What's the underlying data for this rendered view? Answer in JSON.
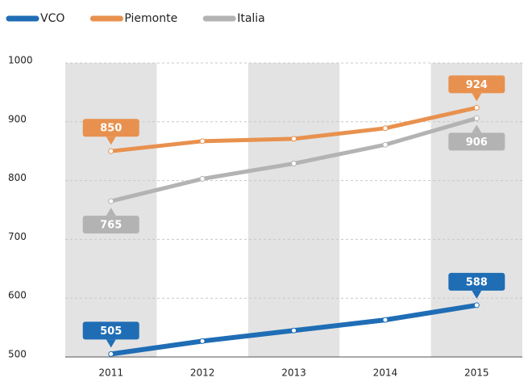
{
  "chart_data": {
    "type": "line",
    "categories": [
      "2011",
      "2012",
      "2013",
      "2014",
      "2015"
    ],
    "series": [
      {
        "name": "VCO",
        "color": "#1f6db5",
        "values": [
          505,
          527,
          545,
          563,
          588
        ],
        "label_position": "above"
      },
      {
        "name": "Piemonte",
        "color": "#e8914f",
        "values": [
          850,
          867,
          871,
          889,
          924
        ],
        "label_position": "above"
      },
      {
        "name": "Italia",
        "color": "#b3b3b3",
        "values": [
          765,
          803,
          829,
          861,
          906
        ],
        "label_position": "below"
      }
    ],
    "ylim": [
      500,
      1000
    ],
    "yticks": [
      500,
      600,
      700,
      800,
      900,
      1000
    ],
    "grid": true
  }
}
